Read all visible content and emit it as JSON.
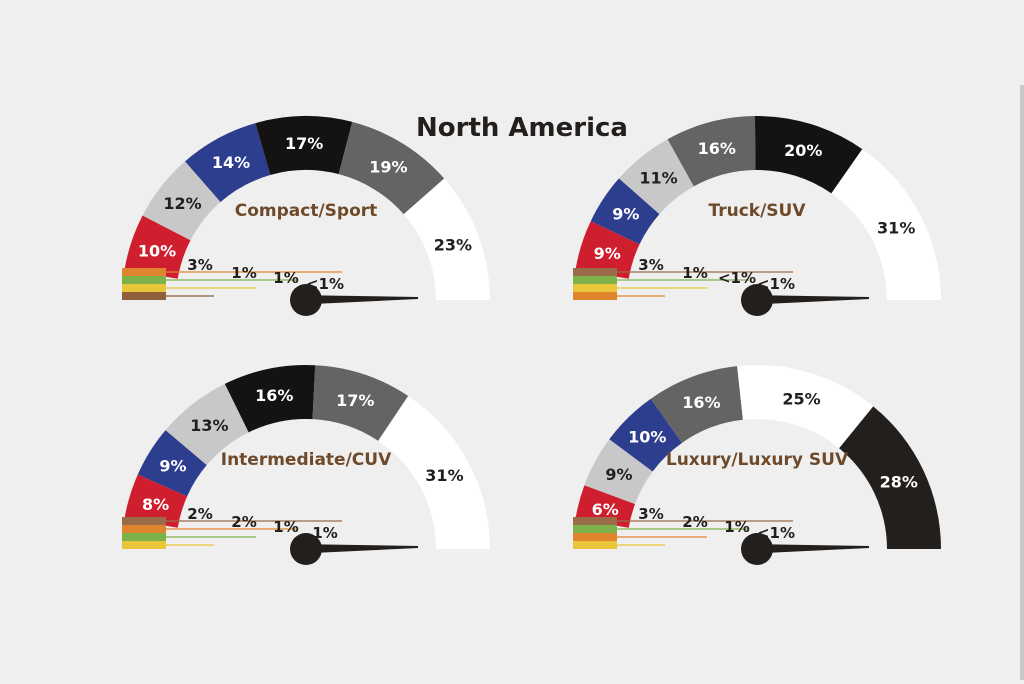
{
  "title": "North America",
  "colors": {
    "background": "#efefef",
    "label_brown": "#6e4a2a",
    "needle": "#231f1c"
  },
  "chart_data": [
    {
      "type": "gauge",
      "title": "Compact/Sport",
      "segments": [
        {
          "label": "<1%",
          "value": 0.5,
          "color": "#8f5e3b"
        },
        {
          "label": "1%",
          "value": 1,
          "color": "#e9c53a"
        },
        {
          "label": "1%",
          "value": 1,
          "color": "#7db24a"
        },
        {
          "label": "3%",
          "value": 3,
          "color": "#e0852e"
        },
        {
          "label": "10%",
          "value": 10,
          "color": "#cf1f2e"
        },
        {
          "label": "12%",
          "value": 12,
          "color": "#c8c8c8"
        },
        {
          "label": "14%",
          "value": 14,
          "color": "#2d3e8f"
        },
        {
          "label": "17%",
          "value": 17,
          "color": "#151312"
        },
        {
          "label": "19%",
          "value": 19,
          "color": "#646464"
        },
        {
          "label": "23%",
          "value": 23,
          "color": "#ffffff"
        }
      ],
      "small_labels": [
        "3%",
        "1%",
        "1%",
        "<1%"
      ]
    },
    {
      "type": "gauge",
      "title": "Truck/SUV",
      "segments": [
        {
          "label": "<1%",
          "value": 0.5,
          "color": "#e0852e"
        },
        {
          "label": "<1%",
          "value": 0.5,
          "color": "#e9c53a"
        },
        {
          "label": "1%",
          "value": 1,
          "color": "#7db24a"
        },
        {
          "label": "3%",
          "value": 3,
          "color": "#9a6b48"
        },
        {
          "label": "9%",
          "value": 9,
          "color": "#cf1f2e"
        },
        {
          "label": "9%",
          "value": 9,
          "color": "#2d3e8f"
        },
        {
          "label": "11%",
          "value": 11,
          "color": "#c8c8c8"
        },
        {
          "label": "16%",
          "value": 16,
          "color": "#646464"
        },
        {
          "label": "20%",
          "value": 20,
          "color": "#151312"
        },
        {
          "label": "31%",
          "value": 31,
          "color": "#ffffff"
        }
      ],
      "small_labels": [
        "3%",
        "1%",
        "<1%",
        "<1%"
      ]
    },
    {
      "type": "gauge",
      "title": "Intermediate/CUV",
      "segments": [
        {
          "label": "1%",
          "value": 1,
          "color": "#e9c53a"
        },
        {
          "label": "1%",
          "value": 1,
          "color": "#7db24a"
        },
        {
          "label": "2%",
          "value": 2,
          "color": "#e0852e"
        },
        {
          "label": "2%",
          "value": 2,
          "color": "#9a6b48"
        },
        {
          "label": "8%",
          "value": 8,
          "color": "#cf1f2e"
        },
        {
          "label": "9%",
          "value": 9,
          "color": "#2d3e8f"
        },
        {
          "label": "13%",
          "value": 13,
          "color": "#c8c8c8"
        },
        {
          "label": "16%",
          "value": 16,
          "color": "#151312"
        },
        {
          "label": "17%",
          "value": 17,
          "color": "#646464"
        },
        {
          "label": "31%",
          "value": 31,
          "color": "#ffffff"
        }
      ],
      "small_labels": [
        "2%",
        "2%",
        "1%",
        "1%"
      ]
    },
    {
      "type": "gauge",
      "title": "Luxury/Luxury SUV",
      "segments": [
        {
          "label": "<1%",
          "value": 0.5,
          "color": "#e9c53a"
        },
        {
          "label": "1%",
          "value": 1,
          "color": "#e0852e"
        },
        {
          "label": "2%",
          "value": 2,
          "color": "#7db24a"
        },
        {
          "label": "3%",
          "value": 3,
          "color": "#9a6b48"
        },
        {
          "label": "6%",
          "value": 6,
          "color": "#cf1f2e"
        },
        {
          "label": "9%",
          "value": 9,
          "color": "#c8c8c8"
        },
        {
          "label": "10%",
          "value": 10,
          "color": "#2d3e8f"
        },
        {
          "label": "16%",
          "value": 16,
          "color": "#646464"
        },
        {
          "label": "25%",
          "value": 25,
          "color": "#ffffff"
        },
        {
          "label": "28%",
          "value": 28,
          "color": "#231f1c"
        }
      ],
      "small_labels": [
        "3%",
        "2%",
        "1%",
        "<1%"
      ]
    }
  ]
}
